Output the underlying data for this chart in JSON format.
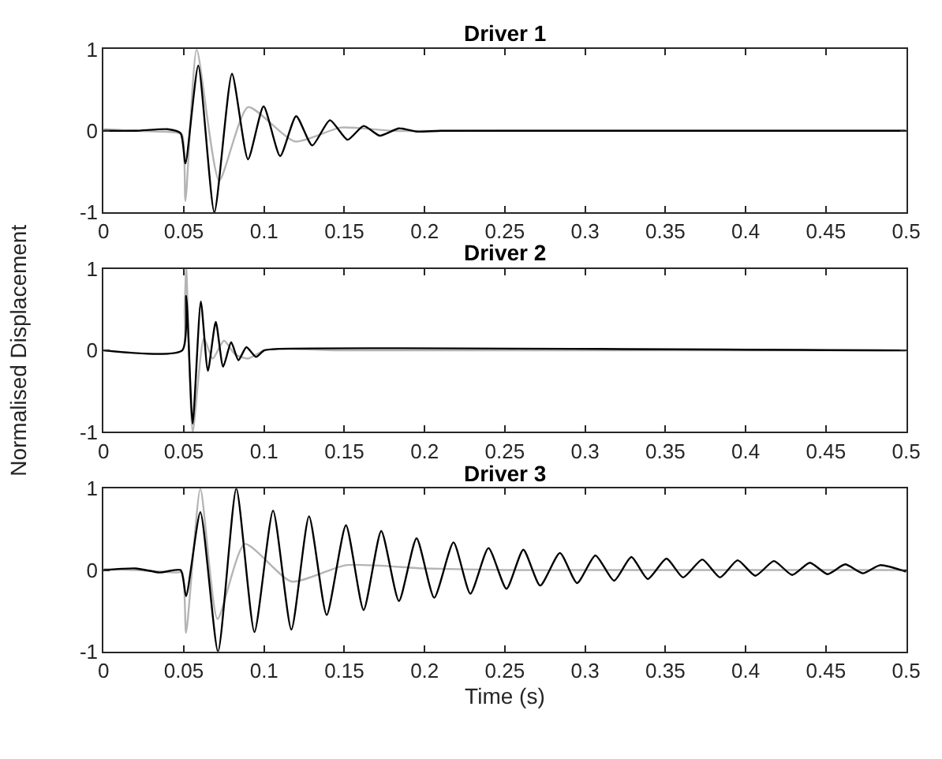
{
  "chart_data": [
    {
      "type": "line",
      "title": "Driver 1",
      "xlim": [
        0,
        0.5
      ],
      "xticks": [
        0,
        0.05,
        0.1,
        0.15,
        0.2,
        0.25,
        0.3,
        0.35,
        0.4,
        0.45,
        0.5
      ],
      "ylim": [
        -1,
        1
      ],
      "yticks": [
        -1,
        0,
        1
      ],
      "series": [
        {
          "color": "#b4b4b4",
          "x": [
            0,
            0.02,
            0.045,
            0.049,
            0.051,
            0.058,
            0.072,
            0.09,
            0.119,
            0.148,
            0.18,
            0.25,
            0.5
          ],
          "values": [
            0.02,
            0,
            -0.02,
            -0.05,
            -0.86,
            1,
            -0.61,
            0.29,
            -0.13,
            0.04,
            0,
            0,
            0
          ]
        },
        {
          "color": "#000000",
          "x": [
            0,
            0.02,
            0.04,
            0.048,
            0.051,
            0.059,
            0.069,
            0.08,
            0.09,
            0.0997,
            0.11,
            0.12,
            0.13,
            0.141,
            0.152,
            0.162,
            0.172,
            0.184,
            0.195,
            0.21,
            0.25,
            0.3,
            0.4,
            0.5
          ],
          "values": [
            0,
            0,
            0.02,
            -0.03,
            -0.4,
            0.8,
            -1,
            0.7,
            -0.35,
            0.3,
            -0.31,
            0.18,
            -0.18,
            0.13,
            -0.11,
            0.06,
            -0.06,
            0.03,
            -0.01,
            0,
            0,
            0,
            0,
            0
          ]
        }
      ]
    },
    {
      "type": "line",
      "title": "Driver 2",
      "ylabel": "Normalised Displacement",
      "xlim": [
        0,
        0.5
      ],
      "xticks": [
        0,
        0.05,
        0.1,
        0.15,
        0.2,
        0.25,
        0.3,
        0.35,
        0.4,
        0.45,
        0.5
      ],
      "ylim": [
        -1,
        1
      ],
      "yticks": [
        -1,
        0,
        1
      ],
      "series": [
        {
          "color": "#b4b4b4",
          "x": [
            0,
            0.049,
            0.0505,
            0.0515,
            0.0555,
            0.0625,
            0.068,
            0.075,
            0.082,
            0.09,
            0.1,
            0.11,
            0.15,
            0.5
          ],
          "values": [
            0,
            0,
            0.5,
            1,
            -1,
            0.15,
            -0.1,
            0.12,
            -0.05,
            -0.1,
            0,
            0.02,
            0,
            0
          ]
        },
        {
          "color": "#000000",
          "x": [
            0,
            0.049,
            0.0515,
            0.0555,
            0.0606,
            0.065,
            0.0699,
            0.0745,
            0.0795,
            0.084,
            0.089,
            0.095,
            0.1,
            0.11,
            0.5
          ],
          "values": [
            0,
            0,
            0.67,
            -0.9,
            0.6,
            -0.25,
            0.35,
            -0.2,
            0.1,
            -0.12,
            0.04,
            -0.08,
            0,
            0.02,
            0
          ]
        }
      ]
    },
    {
      "type": "line",
      "title": "Driver 3",
      "xlabel": "Time (s)",
      "xlim": [
        0,
        0.5
      ],
      "xticks": [
        0,
        0.05,
        0.1,
        0.15,
        0.2,
        0.25,
        0.3,
        0.35,
        0.4,
        0.45,
        0.5
      ],
      "ylim": [
        -1,
        1
      ],
      "yticks": [
        -1,
        0,
        1
      ],
      "series": [
        {
          "color": "#b4b4b4",
          "x": [
            0,
            0.02,
            0.045,
            0.049,
            0.0514,
            0.0603,
            0.071,
            0.088,
            0.117,
            0.151,
            0.2,
            0.25,
            0.3,
            0.5
          ],
          "values": [
            0.01,
            0,
            -0.03,
            -0.03,
            -0.77,
            1,
            -0.6,
            0.32,
            -0.14,
            0.06,
            0.02,
            0,
            0,
            0
          ]
        },
        {
          "color": "#000000",
          "x": [
            0,
            0.02,
            0.035,
            0.048,
            0.0514,
            0.0603,
            0.0713,
            0.0827,
            0.094,
            0.1056,
            0.117,
            0.128,
            0.139,
            0.151,
            0.162,
            0.173,
            0.184,
            0.195,
            0.206,
            0.218,
            0.2285,
            0.2398,
            0.251,
            0.2615,
            0.272,
            0.2843,
            0.295,
            0.3064,
            0.318,
            0.3288,
            0.339,
            0.3507,
            0.361,
            0.373,
            0.384,
            0.395,
            0.406,
            0.4176,
            0.429,
            0.44,
            0.451,
            0.462,
            0.473,
            0.4837,
            0.5
          ],
          "values": [
            0,
            0.02,
            -0.03,
            0,
            -0.32,
            0.71,
            -1,
            1,
            -0.76,
            0.73,
            -0.73,
            0.66,
            -0.55,
            0.55,
            -0.49,
            0.48,
            -0.38,
            0.39,
            -0.34,
            0.34,
            -0.29,
            0.27,
            -0.23,
            0.25,
            -0.19,
            0.21,
            -0.16,
            0.18,
            -0.13,
            0.16,
            -0.11,
            0.14,
            -0.09,
            0.13,
            -0.09,
            0.12,
            -0.07,
            0.11,
            -0.06,
            0.09,
            -0.05,
            0.07,
            -0.04,
            0.06,
            -0.02
          ]
        }
      ]
    }
  ]
}
